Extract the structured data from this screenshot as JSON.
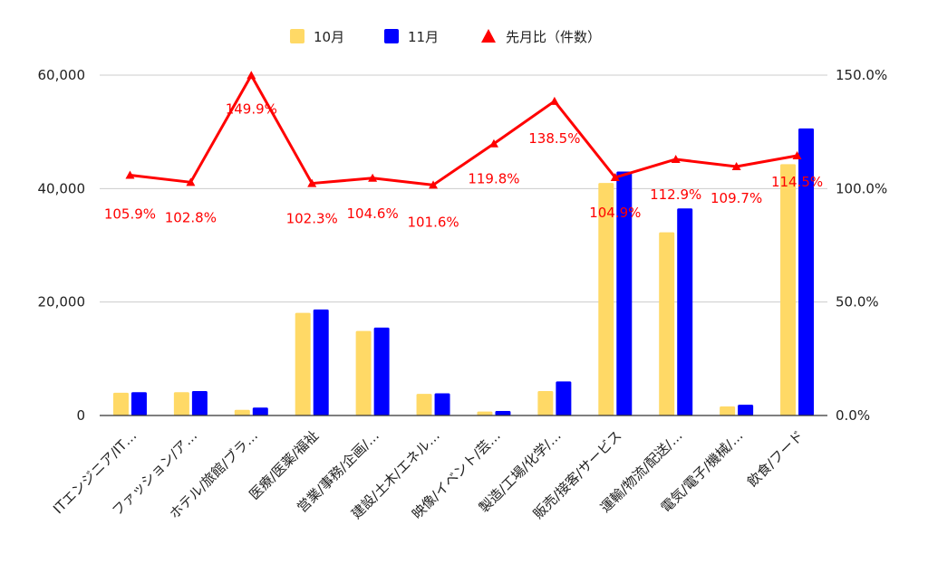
{
  "colors": {
    "series_oct": "#FFD966",
    "series_nov": "#0000FF",
    "series_ratio": "#FF0000",
    "grid": "#CCCCCC",
    "baseline": "#333333",
    "text": "#222222"
  },
  "chart_data": {
    "type": "bar",
    "combo_overlay": "line",
    "categories": [
      "ITエンジニア/IT…",
      "ファッション/ア…",
      "ホテル/旅館/ブラ…",
      "医療/医薬/福祉",
      "営業/事務/企画/…",
      "建設/土木/エネル…",
      "映像/イベント/芸…",
      "製造/工場/化学/…",
      "販売/接客/サービス",
      "運輸/物流/配送/…",
      "電気/電子/機械/…",
      "飲食/フード"
    ],
    "series": [
      {
        "name": "10月",
        "type": "bar",
        "axis": "left",
        "values": [
          4000,
          4100,
          1000,
          18100,
          14900,
          3800,
          700,
          4300,
          41000,
          32300,
          1600,
          44300
        ]
      },
      {
        "name": "11月",
        "type": "bar",
        "axis": "left",
        "values": [
          4100,
          4300,
          1400,
          18700,
          15500,
          3900,
          800,
          6000,
          43000,
          36500,
          1900,
          50600
        ]
      },
      {
        "name": "先月比（件数）",
        "type": "line",
        "axis": "right",
        "values": [
          105.9,
          102.8,
          149.9,
          102.3,
          104.6,
          101.6,
          119.8,
          138.5,
          104.9,
          112.9,
          109.7,
          114.5
        ],
        "labels": [
          "105.9%",
          "102.8%",
          "149.9%",
          "102.3%",
          "104.6%",
          "101.6%",
          "119.8%",
          "138.5%",
          "104.9%",
          "112.9%",
          "109.7%",
          "114.5%"
        ]
      }
    ],
    "y_left": {
      "ylim": [
        0,
        60000
      ],
      "ticks": [
        0,
        20000,
        40000,
        60000
      ],
      "tick_labels": [
        "0",
        "20,000",
        "40,000",
        "60,000"
      ]
    },
    "y_right": {
      "ylim": [
        0,
        150
      ],
      "ticks": [
        0,
        50,
        100,
        150
      ],
      "tick_labels": [
        "0.0%",
        "50.0%",
        "100.0%",
        "150.0%"
      ]
    },
    "grid": true,
    "legend_position": "top-center",
    "legend": [
      {
        "label": "10月",
        "marker": "square"
      },
      {
        "label": "11月",
        "marker": "square"
      },
      {
        "label": "先月比（件数）",
        "marker": "triangle"
      }
    ]
  }
}
